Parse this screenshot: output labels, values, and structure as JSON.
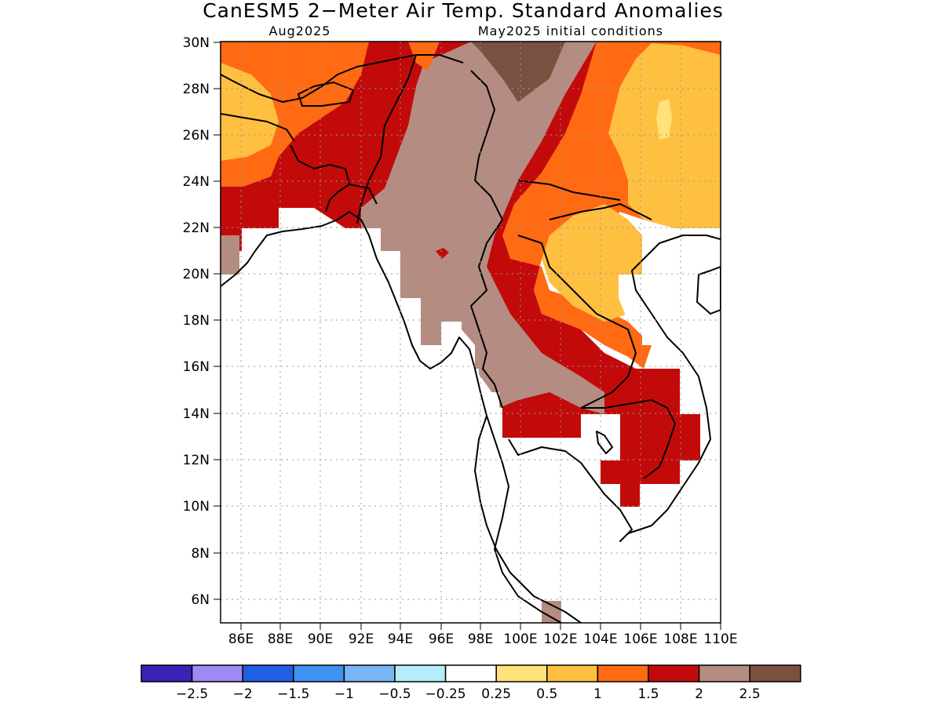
{
  "map": {
    "title": "CanESM5 2−Meter Air Temp. Standard Anomalies",
    "valid_month": "Aug2025",
    "initial_conditions": "May2025 initial conditions",
    "extent": {
      "lon_min": 85,
      "lon_max": 110,
      "lat_min": 5,
      "lat_max": 30
    },
    "lat_tick_labels": [
      "30N",
      "28N",
      "26N",
      "24N",
      "22N",
      "20N",
      "18N",
      "16N",
      "14N",
      "12N",
      "10N",
      "8N",
      "6N"
    ],
    "lon_tick_labels": [
      "86E",
      "88E",
      "90E",
      "92E",
      "94E",
      "96E",
      "98E",
      "100E",
      "102E",
      "104E",
      "106E",
      "108E",
      "110E"
    ],
    "grid": true
  },
  "colorbar": {
    "colors": [
      "#3b22b6",
      "#9f89f5",
      "#1f5fe4",
      "#3f91f2",
      "#79b5f5",
      "#b2eefa",
      "#ffffff",
      "#ffe27a",
      "#ffbf41",
      "#ff6a12",
      "#c30a0a",
      "#b48c82",
      "#7a5040"
    ],
    "labels": [
      "−2.5",
      "−2",
      "−1.5",
      "−1",
      "−0.5",
      "−0.25",
      "0.25",
      "0.5",
      "1",
      "1.5",
      "2",
      "2.5"
    ]
  },
  "colors": {
    "brown": "#7a5040",
    "taupe": "#b48c82",
    "red": "#c30a0a",
    "orange": "#ff6a12",
    "gold": "#ffbf41",
    "lightyellow": "#ffe27a",
    "coast": "#000000"
  }
}
